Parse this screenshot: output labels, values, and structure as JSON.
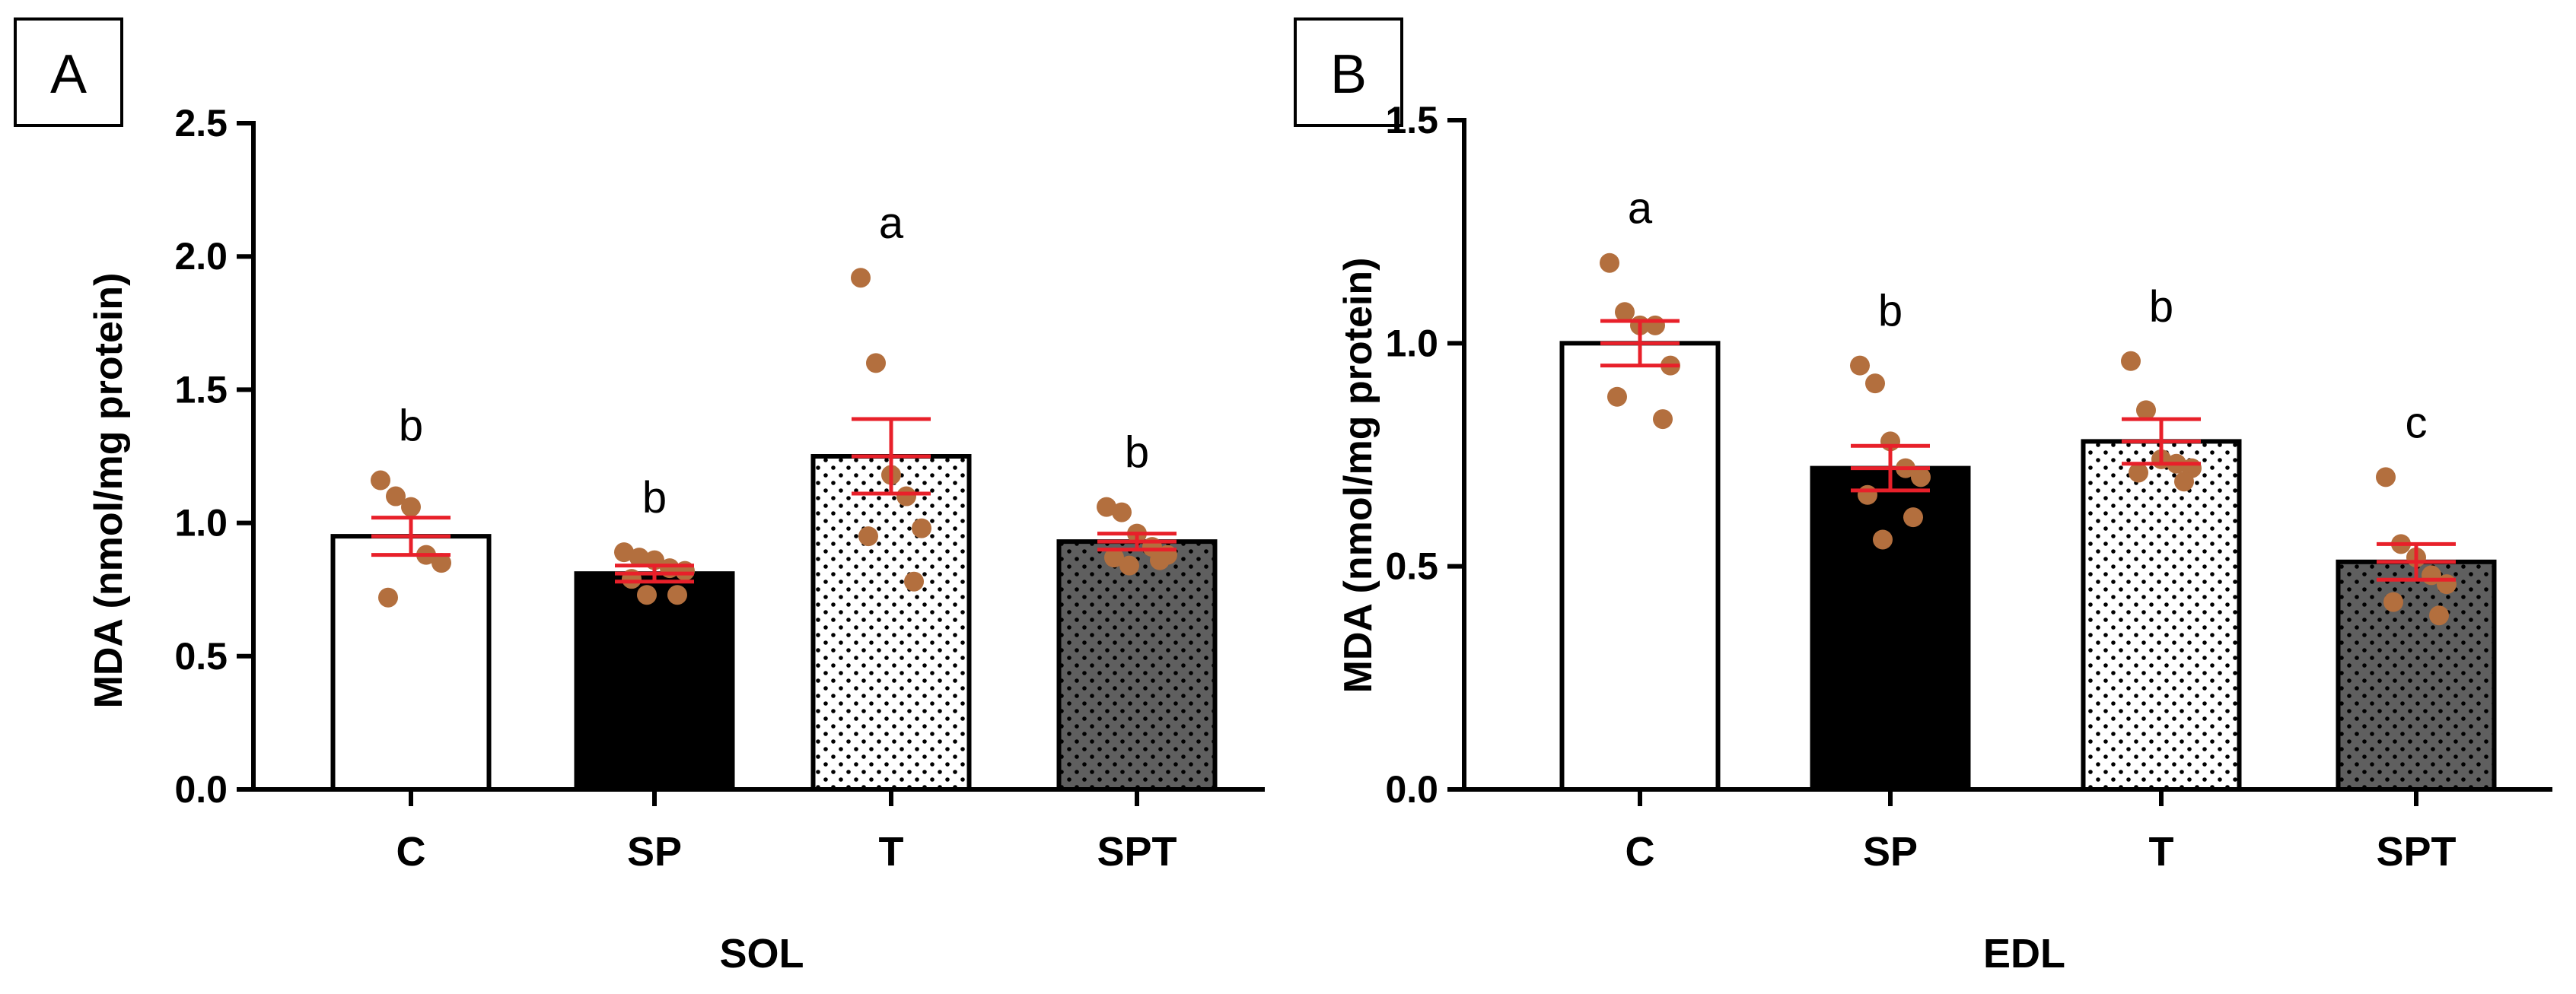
{
  "chart_data": [
    {
      "panel": "A",
      "type": "bar",
      "xlabel": "SOL",
      "ylabel": "MDA (nmol/mg protein)",
      "ylim": [
        0,
        2.5
      ],
      "yticks": [
        0.0,
        0.5,
        1.0,
        1.5,
        2.0,
        2.5
      ],
      "ytick_labels": [
        "0.0",
        "0.5",
        "1.0",
        "1.5",
        "2.0",
        "2.5"
      ],
      "categories": [
        "C",
        "SP",
        "T",
        "SPT"
      ],
      "values": [
        0.95,
        0.81,
        1.25,
        0.93
      ],
      "sem": [
        0.07,
        0.03,
        0.14,
        0.03
      ],
      "significance": [
        "b",
        "b",
        "a",
        "b"
      ],
      "fill_styles": [
        "white",
        "black",
        "dotted-light",
        "dotted-dark"
      ],
      "points": [
        [
          1.16,
          1.1,
          1.06,
          0.88,
          0.85,
          0.72
        ],
        [
          0.89,
          0.87,
          0.86,
          0.83,
          0.82,
          0.79,
          0.73,
          0.73
        ],
        [
          1.92,
          1.6,
          1.18,
          1.1,
          0.98,
          0.95,
          0.78
        ],
        [
          1.06,
          1.04,
          0.96,
          0.91,
          0.88,
          0.87,
          0.86,
          0.84
        ]
      ]
    },
    {
      "panel": "B",
      "type": "bar",
      "xlabel": "EDL",
      "ylabel": "MDA (nmol/mg protein)",
      "ylim": [
        0,
        1.5
      ],
      "yticks": [
        0.0,
        0.5,
        1.0,
        1.5
      ],
      "ytick_labels": [
        "0.0",
        "0.5",
        "1.0",
        "1.5"
      ],
      "categories": [
        "C",
        "SP",
        "T",
        "SPT"
      ],
      "values": [
        1.0,
        0.72,
        0.78,
        0.51
      ],
      "sem": [
        0.05,
        0.05,
        0.05,
        0.04
      ],
      "significance": [
        "a",
        "b",
        "b",
        "c"
      ],
      "fill_styles": [
        "white",
        "black",
        "dotted-light",
        "dotted-dark"
      ],
      "points": [
        [
          1.18,
          1.07,
          1.04,
          1.04,
          0.95,
          0.88,
          0.83
        ],
        [
          0.95,
          0.91,
          0.78,
          0.72,
          0.7,
          0.66,
          0.61,
          0.56
        ],
        [
          0.96,
          0.85,
          0.74,
          0.73,
          0.72,
          0.71,
          0.69
        ],
        [
          0.7,
          0.55,
          0.52,
          0.48,
          0.46,
          0.42,
          0.39
        ]
      ]
    }
  ],
  "colors": {
    "bar_outline": "#000000",
    "bar_black": "#000000",
    "bar_dark": "#5f5f5f",
    "dot_pattern": "#000000",
    "error_bar": "#e8202a",
    "data_point": "#b36f3e",
    "axis": "#000000"
  }
}
